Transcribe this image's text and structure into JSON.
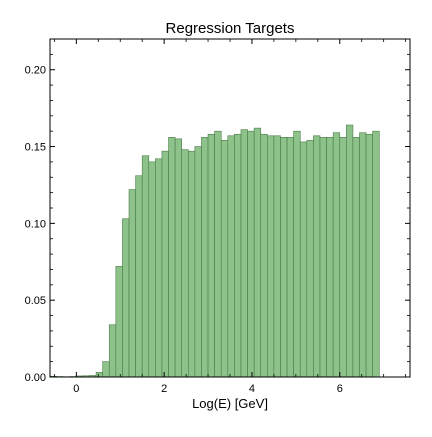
{
  "chart_data": {
    "type": "bar",
    "title": "Regression Targets",
    "xlabel": "Log(E) [GeV]",
    "ylabel": "",
    "xlim": [
      -0.6,
      7.6
    ],
    "ylim": [
      0,
      0.22
    ],
    "bin_width": 0.15,
    "bin_start": -0.6,
    "values": [
      0.0005,
      0.0003,
      0.0002,
      0.0003,
      0.0007,
      0.0008,
      0.001,
      0.003,
      0.01,
      0.034,
      0.072,
      0.103,
      0.122,
      0.131,
      0.144,
      0.14,
      0.142,
      0.147,
      0.156,
      0.155,
      0.148,
      0.147,
      0.15,
      0.156,
      0.158,
      0.16,
      0.154,
      0.157,
      0.158,
      0.161,
      0.16,
      0.162,
      0.158,
      0.157,
      0.157,
      0.156,
      0.156,
      0.16,
      0.153,
      0.154,
      0.157,
      0.156,
      0.156,
      0.159,
      0.156,
      0.164,
      0.156,
      0.159,
      0.158,
      0.16
    ],
    "color": "#8dc38a",
    "edge_color": "#4a7a48",
    "x_ticks": [
      0,
      2,
      4,
      6
    ],
    "x_tick_labels": [
      "0",
      "2",
      "4",
      "6"
    ],
    "y_ticks": [
      0,
      0.05,
      0.1,
      0.15,
      0.2
    ],
    "y_tick_labels": [
      "0.00",
      "0.05",
      "0.10",
      "0.15",
      "0.20"
    ],
    "x_minor_step": 0.5,
    "y_minor_step": 0.01,
    "grid": false,
    "legend": "none"
  }
}
